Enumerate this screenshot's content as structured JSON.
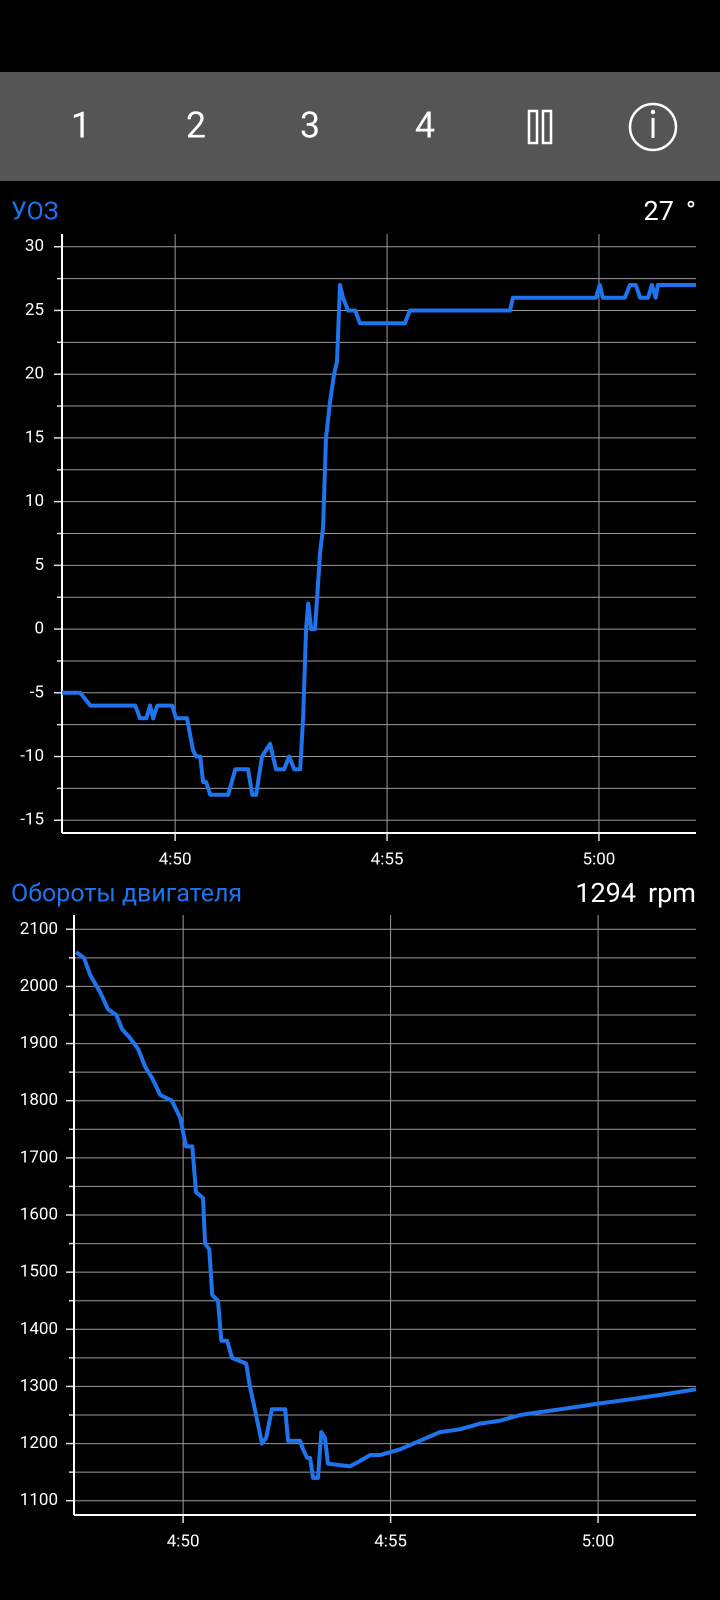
{
  "toolbar": {
    "tabs": [
      "1",
      "2",
      "3",
      "4"
    ]
  },
  "chart_data": [
    {
      "type": "line",
      "title": "УОЗ",
      "current_value": 27,
      "unit": "°",
      "color": "#1f74ee",
      "x": [
        287.33,
        287.76,
        288.0,
        289.06,
        289.17,
        289.32,
        289.41,
        289.48,
        289.58,
        289.93,
        290.02,
        290.28,
        290.42,
        290.5,
        290.59,
        290.66,
        290.73,
        290.83,
        291.25,
        291.42,
        291.72,
        291.82,
        291.91,
        292.05,
        292.24,
        292.38,
        292.57,
        292.69,
        292.81,
        292.95,
        293.02,
        293.09,
        293.14,
        293.21,
        293.3,
        293.42,
        293.49,
        293.56,
        293.66,
        293.75,
        293.82,
        293.89,
        293.96,
        294.08,
        294.25,
        294.36,
        295.42,
        295.54,
        297.9,
        297.97,
        299.93,
        300.02,
        300.09,
        300.61,
        300.73,
        300.87,
        300.97,
        301.16,
        301.25,
        301.34,
        301.39,
        302.29
      ],
      "values": [
        -5,
        -5,
        -6,
        -6,
        -7,
        -7,
        -6,
        -7,
        -6,
        -6,
        -7,
        -7,
        -9.5,
        -10,
        -10,
        -12,
        -12,
        -13,
        -13,
        -11,
        -11,
        -13,
        -13,
        -10,
        -9,
        -11,
        -11,
        -10,
        -11,
        -11,
        -7,
        0,
        2,
        0,
        0,
        6,
        8,
        15,
        18,
        20,
        21,
        27,
        26,
        25,
        25,
        24,
        24,
        25,
        25,
        26,
        26,
        27,
        26,
        26,
        27,
        27,
        26,
        26,
        27,
        26,
        27,
        27
      ],
      "xlim": [
        287.33,
        302.29
      ],
      "xticks": [
        {
          "value": 290,
          "label": "4:50"
        },
        {
          "value": 295,
          "label": "4:55"
        },
        {
          "value": 300,
          "label": "5:00"
        }
      ],
      "ylim": [
        -16,
        31
      ],
      "yticks": [
        -15,
        -10,
        -5,
        0,
        5,
        10,
        15,
        20,
        25,
        30
      ],
      "minor_yticks": [
        -12.5,
        -7.5,
        -2.5,
        2.5,
        7.5,
        12.5,
        17.5,
        22.5,
        27.5
      ],
      "grid": true
    },
    {
      "type": "line",
      "title": "Обороты двигателя",
      "current_value": 1294,
      "unit": "rpm",
      "color": "#1f74ee",
      "x": [
        287.42,
        287.61,
        287.76,
        288.0,
        288.19,
        288.39,
        288.53,
        288.72,
        288.92,
        289.08,
        289.25,
        289.45,
        289.73,
        289.93,
        290.07,
        290.22,
        290.31,
        290.48,
        290.53,
        290.63,
        290.7,
        290.84,
        290.92,
        291.06,
        291.18,
        291.52,
        291.61,
        291.73,
        291.9,
        292.0,
        292.14,
        292.46,
        292.53,
        292.82,
        292.89,
        292.99,
        293.06,
        293.13,
        293.25,
        293.33,
        293.42,
        293.49,
        294.02,
        294.27,
        294.51,
        294.75,
        295.23,
        295.71,
        296.19,
        296.67,
        297.16,
        297.64,
        298.12,
        298.6,
        299.08,
        299.57,
        300.0,
        300.53,
        301.01,
        301.49,
        302.36
      ],
      "values": [
        2060,
        2050,
        2020,
        1990,
        1960,
        1950,
        1925,
        1910,
        1890,
        1860,
        1840,
        1810,
        1800,
        1770,
        1720,
        1720,
        1640,
        1630,
        1550,
        1540,
        1460,
        1450,
        1380,
        1380,
        1350,
        1340,
        1300,
        1260,
        1200,
        1210,
        1260,
        1260,
        1205,
        1205,
        1190,
        1175,
        1175,
        1140,
        1140,
        1220,
        1210,
        1165,
        1160,
        1170,
        1180,
        1180,
        1190,
        1205,
        1220,
        1225,
        1235,
        1240,
        1250,
        1255,
        1260,
        1265,
        1270,
        1275,
        1280,
        1285,
        1295
      ],
      "xlim": [
        287.37,
        302.36
      ],
      "xticks": [
        {
          "value": 290,
          "label": "4:50"
        },
        {
          "value": 295,
          "label": "4:55"
        },
        {
          "value": 300,
          "label": "5:00"
        }
      ],
      "ylim": [
        1075,
        2125
      ],
      "yticks": [
        1100,
        1200,
        1300,
        1400,
        1500,
        1600,
        1700,
        1800,
        1900,
        2000,
        2100
      ],
      "minor_yticks": [
        1150,
        1250,
        1350,
        1450,
        1550,
        1650,
        1750,
        1850,
        1950,
        2050
      ],
      "grid": true
    }
  ]
}
